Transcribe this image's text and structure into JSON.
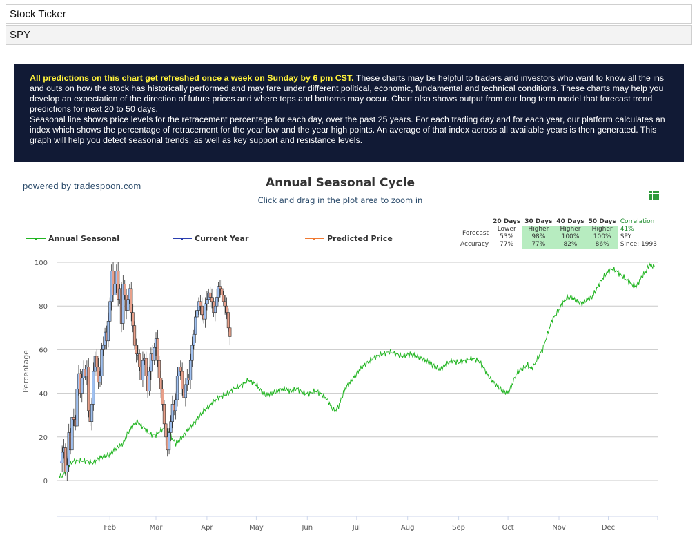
{
  "inputs": {
    "ticker_label": "Stock Ticker",
    "ticker_value": "SPY"
  },
  "info": {
    "highlight": "All predictions on this chart get refreshed once a week on Sunday by 6 pm CST.",
    "para1": " These charts may be helpful to traders and investors who want to know all the ins and outs on how the stock has historically performed and may fare under different political, economic, fundamental and technical conditions. These charts may help you develop an expectation of the direction of future prices and where tops and bottoms may occur. Chart also shows output from our long term model that forecast trend predictions for next 20 to 50 days.",
    "para2": "Seasonal line shows price levels for the retracement percentage for each day, over the past 25 years. For each trading day and for each year, our platform calculates an index which shows the percentage of retracement for the year low and the year high points. An average of that index across all available years is then generated. This graph will help you detect seasonal trends, as well as key support and resistance levels."
  },
  "powered_by": "powered by tradespoon.com",
  "colors": {
    "seasonal": "#22b522",
    "current": "#2b3fb0",
    "predicted": "#f07a33",
    "up_fill": "#9fc0f0",
    "down_fill": "#e8a08a",
    "grid": "#c8c8c8",
    "menu": "#2e9a3a"
  },
  "forecast_table": {
    "headers": [
      "20 Days",
      "30 Days",
      "40 Days",
      "50 Days"
    ],
    "forecast_label": "Forecast",
    "forecast_dir": [
      "Lower",
      "Higher",
      "Higher",
      "Higher"
    ],
    "forecast_pct": [
      "53%",
      "98%",
      "100%",
      "100%"
    ],
    "accuracy_label": "Accuracy",
    "accuracy": [
      "77%",
      "77%",
      "82%",
      "86%"
    ],
    "correlation_link": "Correlation",
    "correlation_value": "41%",
    "symbol": "SPY",
    "since": "Since: 1993"
  },
  "chart_data": {
    "type": "line",
    "title": "Annual Seasonal Cycle",
    "subtitle": "Click and drag in the plot area to zoom in",
    "ylabel": "Percentage",
    "xlabel": "",
    "ylim": [
      0,
      100
    ],
    "yticks": [
      0,
      20,
      40,
      60,
      80,
      100
    ],
    "months": [
      "Feb",
      "Mar",
      "Apr",
      "May",
      "Jun",
      "Jul",
      "Aug",
      "Sep",
      "Oct",
      "Nov",
      "Dec"
    ],
    "grid": true,
    "legend": "top",
    "series": [
      {
        "name": "Annual Seasonal",
        "points": [
          [
            1,
            2
          ],
          [
            3,
            2
          ],
          [
            5,
            4
          ],
          [
            7,
            7
          ],
          [
            10,
            9
          ],
          [
            14,
            9
          ],
          [
            18,
            9
          ],
          [
            22,
            8
          ],
          [
            25,
            10
          ],
          [
            28,
            11
          ],
          [
            32,
            12
          ],
          [
            35,
            14
          ],
          [
            38,
            16
          ],
          [
            40,
            17
          ],
          [
            43,
            22
          ],
          [
            45,
            24
          ],
          [
            47,
            26
          ],
          [
            49,
            27
          ],
          [
            51,
            25
          ],
          [
            53,
            24
          ],
          [
            55,
            22
          ],
          [
            57,
            21
          ],
          [
            60,
            21
          ],
          [
            63,
            23
          ],
          [
            65,
            24
          ],
          [
            68,
            22
          ],
          [
            70,
            19
          ],
          [
            72,
            17
          ],
          [
            74,
            18
          ],
          [
            76,
            20
          ],
          [
            78,
            22
          ],
          [
            80,
            24
          ],
          [
            83,
            26
          ],
          [
            86,
            29
          ],
          [
            89,
            32
          ],
          [
            92,
            34
          ],
          [
            95,
            36
          ],
          [
            98,
            38
          ],
          [
            101,
            39
          ],
          [
            104,
            40
          ],
          [
            107,
            42
          ],
          [
            110,
            43
          ],
          [
            113,
            44
          ],
          [
            116,
            46
          ],
          [
            119,
            45
          ],
          [
            121,
            44
          ],
          [
            123,
            42
          ],
          [
            125,
            40
          ],
          [
            127,
            39
          ],
          [
            130,
            40
          ],
          [
            134,
            41
          ],
          [
            138,
            42
          ],
          [
            142,
            41
          ],
          [
            146,
            42
          ],
          [
            150,
            40
          ],
          [
            154,
            40
          ],
          [
            157,
            41
          ],
          [
            160,
            40
          ],
          [
            163,
            38
          ],
          [
            165,
            36
          ],
          [
            167,
            33
          ],
          [
            169,
            32
          ],
          [
            171,
            34
          ],
          [
            173,
            38
          ],
          [
            175,
            42
          ],
          [
            178,
            45
          ],
          [
            181,
            48
          ],
          [
            184,
            51
          ],
          [
            187,
            53
          ],
          [
            190,
            55
          ],
          [
            194,
            57
          ],
          [
            198,
            58
          ],
          [
            202,
            59
          ],
          [
            206,
            58
          ],
          [
            210,
            57
          ],
          [
            214,
            58
          ],
          [
            218,
            57
          ],
          [
            222,
            56
          ],
          [
            226,
            54
          ],
          [
            230,
            52
          ],
          [
            233,
            51
          ],
          [
            236,
            53
          ],
          [
            240,
            55
          ],
          [
            244,
            54
          ],
          [
            248,
            55
          ],
          [
            252,
            56
          ],
          [
            256,
            55
          ],
          [
            259,
            52
          ],
          [
            262,
            48
          ],
          [
            265,
            45
          ],
          [
            268,
            43
          ],
          [
            271,
            41
          ],
          [
            274,
            40
          ],
          [
            276,
            43
          ],
          [
            278,
            47
          ],
          [
            280,
            50
          ],
          [
            282,
            51
          ],
          [
            284,
            52
          ],
          [
            286,
            53
          ],
          [
            288,
            51
          ],
          [
            290,
            53
          ],
          [
            292,
            56
          ],
          [
            295,
            60
          ],
          [
            298,
            67
          ],
          [
            301,
            74
          ],
          [
            304,
            77
          ],
          [
            307,
            81
          ],
          [
            310,
            84
          ],
          [
            313,
            84
          ],
          [
            316,
            82
          ],
          [
            319,
            81
          ],
          [
            322,
            83
          ],
          [
            325,
            84
          ],
          [
            328,
            88
          ],
          [
            331,
            92
          ],
          [
            334,
            95
          ],
          [
            337,
            97
          ],
          [
            340,
            96
          ],
          [
            343,
            94
          ],
          [
            346,
            92
          ],
          [
            349,
            90
          ],
          [
            352,
            89
          ],
          [
            355,
            93
          ],
          [
            358,
            96
          ],
          [
            360,
            99
          ],
          [
            363,
            98
          ]
        ]
      },
      {
        "name": "Current Year",
        "points": [
          [
            2,
            8
          ],
          [
            3,
            13
          ],
          [
            4,
            15
          ],
          [
            5,
            4
          ],
          [
            6,
            7
          ],
          [
            7,
            22
          ],
          [
            8,
            14
          ],
          [
            9,
            29
          ],
          [
            10,
            28
          ],
          [
            11,
            25
          ],
          [
            12,
            42
          ],
          [
            13,
            49
          ],
          [
            14,
            40
          ],
          [
            15,
            47
          ],
          [
            16,
            51
          ],
          [
            17,
            48
          ],
          [
            18,
            52
          ],
          [
            19,
            32
          ],
          [
            20,
            27
          ],
          [
            21,
            35
          ],
          [
            22,
            50
          ],
          [
            23,
            57
          ],
          [
            24,
            52
          ],
          [
            25,
            45
          ],
          [
            26,
            48
          ],
          [
            27,
            60
          ],
          [
            28,
            62
          ],
          [
            29,
            68
          ],
          [
            30,
            64
          ],
          [
            31,
            73
          ],
          [
            32,
            82
          ],
          [
            33,
            96
          ],
          [
            34,
            85
          ],
          [
            35,
            90
          ],
          [
            36,
            96
          ],
          [
            37,
            83
          ],
          [
            38,
            88
          ],
          [
            39,
            72
          ],
          [
            40,
            90
          ],
          [
            41,
            85
          ],
          [
            42,
            78
          ],
          [
            43,
            83
          ],
          [
            44,
            88
          ],
          [
            45,
            77
          ],
          [
            46,
            71
          ],
          [
            47,
            62
          ],
          [
            48,
            58
          ],
          [
            49,
            58
          ],
          [
            50,
            52
          ],
          [
            51,
            46
          ],
          [
            52,
            55
          ],
          [
            53,
            56
          ],
          [
            54,
            48
          ],
          [
            55,
            41
          ],
          [
            56,
            50
          ],
          [
            57,
            58
          ],
          [
            58,
            55
          ],
          [
            59,
            61
          ],
          [
            60,
            65
          ],
          [
            61,
            55
          ],
          [
            62,
            47
          ],
          [
            63,
            42
          ],
          [
            64,
            35
          ],
          [
            65,
            26
          ],
          [
            66,
            20
          ],
          [
            67,
            14
          ],
          [
            68,
            22
          ],
          [
            69,
            27
          ],
          [
            70,
            35
          ],
          [
            71,
            32
          ],
          [
            72,
            37
          ],
          [
            73,
            48
          ],
          [
            74,
            52
          ],
          [
            75,
            50
          ],
          [
            76,
            42
          ],
          [
            77,
            38
          ],
          [
            78,
            44
          ],
          [
            79,
            47
          ],
          [
            80,
            46
          ],
          [
            81,
            55
          ],
          [
            82,
            62
          ],
          [
            83,
            67
          ],
          [
            84,
            75
          ],
          [
            85,
            78
          ],
          [
            86,
            82
          ],
          [
            87,
            80
          ],
          [
            88,
            76
          ],
          [
            89,
            74
          ],
          [
            90,
            81
          ],
          [
            91,
            83
          ],
          [
            92,
            86
          ],
          [
            93,
            84
          ],
          [
            94,
            82
          ],
          [
            95,
            77
          ],
          [
            96,
            80
          ],
          [
            97,
            84
          ],
          [
            98,
            89
          ],
          [
            99,
            88
          ],
          [
            100,
            85
          ],
          [
            101,
            82
          ],
          [
            102,
            80
          ],
          [
            103,
            77
          ],
          [
            104,
            70
          ],
          [
            105,
            66
          ]
        ]
      },
      {
        "name": "Predicted Price",
        "points": []
      }
    ]
  }
}
